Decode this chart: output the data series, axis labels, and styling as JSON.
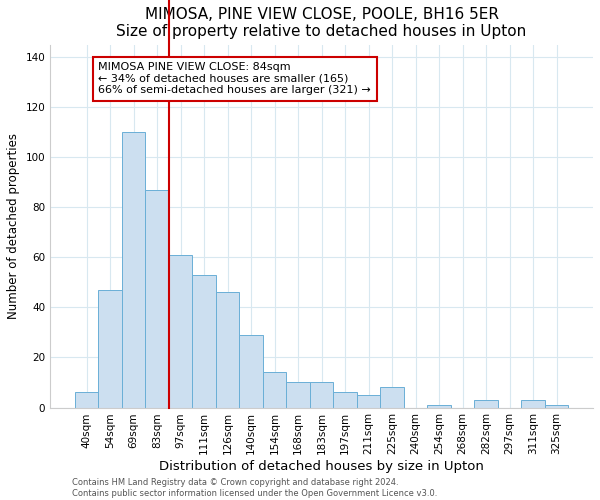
{
  "title": "MIMOSA, PINE VIEW CLOSE, POOLE, BH16 5ER",
  "subtitle": "Size of property relative to detached houses in Upton",
  "xlabel": "Distribution of detached houses by size in Upton",
  "ylabel": "Number of detached properties",
  "bar_labels": [
    "40sqm",
    "54sqm",
    "69sqm",
    "83sqm",
    "97sqm",
    "111sqm",
    "126sqm",
    "140sqm",
    "154sqm",
    "168sqm",
    "183sqm",
    "197sqm",
    "211sqm",
    "225sqm",
    "240sqm",
    "254sqm",
    "268sqm",
    "282sqm",
    "297sqm",
    "311sqm",
    "325sqm"
  ],
  "bar_values": [
    6,
    47,
    110,
    87,
    61,
    53,
    46,
    29,
    14,
    10,
    10,
    6,
    5,
    8,
    0,
    1,
    0,
    3,
    0,
    3,
    1
  ],
  "bar_color": "#ccdff0",
  "bar_edge_color": "#6aafd6",
  "ylim": [
    0,
    145
  ],
  "yticks": [
    0,
    20,
    40,
    60,
    80,
    100,
    120,
    140
  ],
  "property_line_index": 3,
  "property_line_color": "#cc0000",
  "annotation_title": "MIMOSA PINE VIEW CLOSE: 84sqm",
  "annotation_line1": "← 34% of detached houses are smaller (165)",
  "annotation_line2": "66% of semi-detached houses are larger (321) →",
  "annotation_box_color": "#cc0000",
  "footer1": "Contains HM Land Registry data © Crown copyright and database right 2024.",
  "footer2": "Contains public sector information licensed under the Open Government Licence v3.0.",
  "background_color": "#ffffff",
  "grid_color": "#d8e8f0",
  "title_fontsize": 11,
  "subtitle_fontsize": 9.5,
  "xlabel_fontsize": 9.5,
  "ylabel_fontsize": 8.5,
  "tick_fontsize": 7.5,
  "annotation_fontsize": 8,
  "footer_fontsize": 6
}
